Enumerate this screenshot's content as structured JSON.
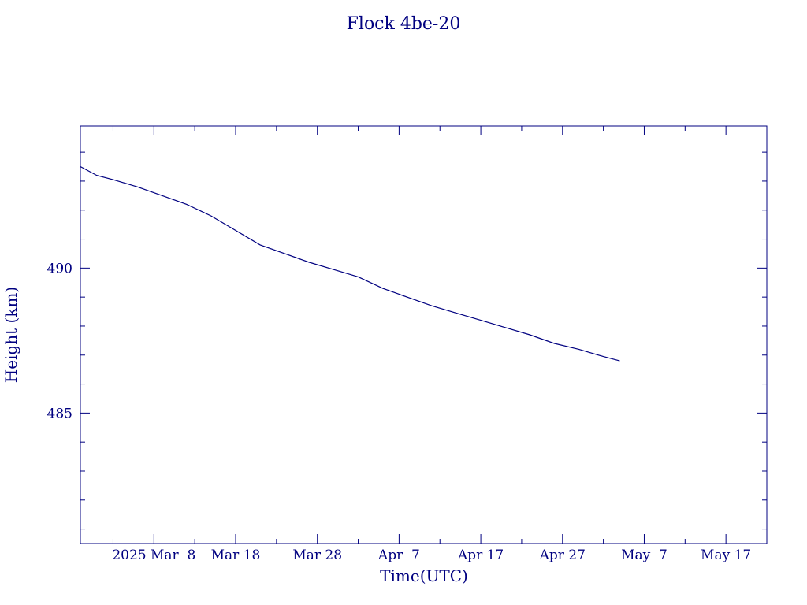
{
  "chart_data": {
    "type": "line",
    "title": "Flock 4be-20",
    "xlabel": "Time(UTC)",
    "ylabel": "Height (km)",
    "x_tick_labels": [
      "2025 Mar  8",
      "Mar 18",
      "Mar 28",
      "Apr  7",
      "Apr 17",
      "Apr 27",
      "May  7",
      "May 17"
    ],
    "x_tick_dates": [
      "2025-03-08",
      "2025-03-18",
      "2025-03-28",
      "2025-04-07",
      "2025-04-17",
      "2025-04-27",
      "2025-05-07",
      "2025-05-17"
    ],
    "y_tick_labels": [
      "485",
      "490"
    ],
    "y_ticks": [
      485,
      490
    ],
    "xlim": [
      "2025-02-27",
      "2025-05-22"
    ],
    "ylim": [
      480.5,
      494.9
    ],
    "grid": false,
    "color": "#000080",
    "series": [
      {
        "x": [
          "2025-02-27",
          "2025-03-01",
          "2025-03-03",
          "2025-03-06",
          "2025-03-09",
          "2025-03-12",
          "2025-03-15",
          "2025-03-18",
          "2025-03-21",
          "2025-03-24",
          "2025-03-27",
          "2025-03-30",
          "2025-04-02",
          "2025-04-05",
          "2025-04-08",
          "2025-04-11",
          "2025-04-14",
          "2025-04-17",
          "2025-04-20",
          "2025-04-23",
          "2025-04-26",
          "2025-04-29",
          "2025-05-02",
          "2025-05-04"
        ],
        "y": [
          493.5,
          493.2,
          493.05,
          492.8,
          492.5,
          492.2,
          491.8,
          491.3,
          490.8,
          490.5,
          490.2,
          489.95,
          489.7,
          489.3,
          489.0,
          488.7,
          488.45,
          488.2,
          487.95,
          487.7,
          487.4,
          487.2,
          486.95,
          486.8
        ]
      }
    ]
  }
}
